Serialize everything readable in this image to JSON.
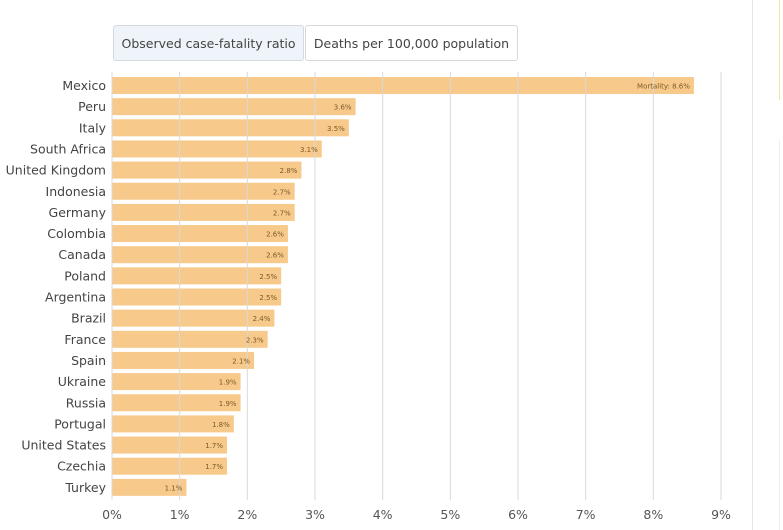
{
  "tabs": [
    {
      "label": "Observed case-fatality ratio",
      "active": true
    },
    {
      "label": "Deaths per 100,000 population",
      "active": false
    }
  ],
  "colors": {
    "bar": "#f7c98a",
    "grid": "#d9d9d9",
    "active_tab": "#eef4fa"
  },
  "chart_data": {
    "type": "bar",
    "orientation": "horizontal",
    "categories": [
      "Mexico",
      "Peru",
      "Italy",
      "South Africa",
      "United Kingdom",
      "Indonesia",
      "Germany",
      "Colombia",
      "Canada",
      "Poland",
      "Argentina",
      "Brazil",
      "France",
      "Spain",
      "Ukraine",
      "Russia",
      "Portugal",
      "United States",
      "Czechia",
      "Turkey"
    ],
    "values": [
      8.6,
      3.6,
      3.5,
      3.1,
      2.8,
      2.7,
      2.7,
      2.6,
      2.6,
      2.5,
      2.5,
      2.4,
      2.3,
      2.1,
      1.9,
      1.9,
      1.8,
      1.7,
      1.7,
      1.1
    ],
    "labels": [
      "Mortality: 8.6%",
      "3.6%",
      "3.5%",
      "3.1%",
      "2.8%",
      "2.7%",
      "2.7%",
      "2.6%",
      "2.6%",
      "2.5%",
      "2.5%",
      "2.4%",
      "2.3%",
      "2.1%",
      "1.9%",
      "1.9%",
      "1.8%",
      "1.7%",
      "1.7%",
      "1.1%"
    ],
    "xticks": [
      "0%",
      "1%",
      "2%",
      "3%",
      "4%",
      "5%",
      "6%",
      "7%",
      "8%",
      "9%"
    ],
    "xlim": [
      0,
      9
    ],
    "grid": true
  }
}
